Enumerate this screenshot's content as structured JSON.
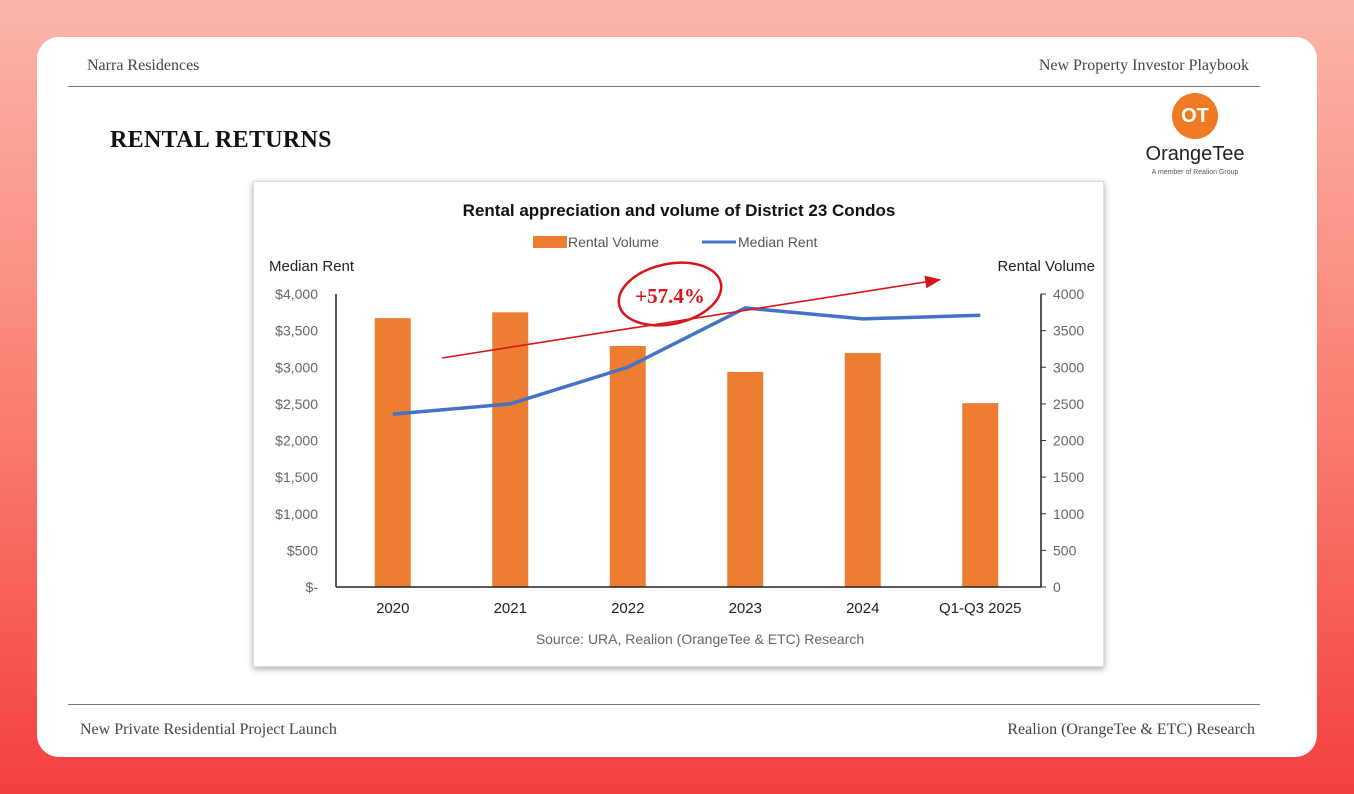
{
  "header": {
    "left": "Narra Residences",
    "right": "New Property Investor Playbook"
  },
  "section_title": "RENTAL RETURNS",
  "logo": {
    "mark": "OT",
    "name": "OrangeTee",
    "tagline": "A member of Realion Group"
  },
  "footer": {
    "left": "New Private Residential Project Launch",
    "right": "Realion (OrangeTee & ETC) Research"
  },
  "colors": {
    "bar": "#ed7d31",
    "line": "#4472c4",
    "annotation": "#d9151b"
  },
  "chart_data": {
    "type": "bar+line",
    "title": "Rental appreciation and volume of District 23 Condos",
    "categories": [
      "2020",
      "2021",
      "2022",
      "2023",
      "2024",
      "Q1-Q3 2025"
    ],
    "series": [
      {
        "name": "Rental Volume",
        "type": "bar",
        "axis": "right",
        "values": [
          3670,
          3750,
          3290,
          2935,
          3195,
          2510
        ]
      },
      {
        "name": "Median Rent",
        "type": "line",
        "axis": "left",
        "values": [
          2360,
          2500,
          3000,
          3810,
          3660,
          3710
        ]
      }
    ],
    "ylabel_left": "Median Rent",
    "ylabel_right": "Rental Volume",
    "ylim_left": [
      0,
      4000
    ],
    "ylim_right": [
      0,
      4000
    ],
    "yticks_left": [
      "$-",
      "$500",
      "$1,000",
      "$1,500",
      "$2,000",
      "$2,500",
      "$3,000",
      "$3,500",
      "$4,000"
    ],
    "yticks_right": [
      "0",
      "500",
      "1000",
      "1500",
      "2000",
      "2500",
      "3000",
      "3500",
      "4000"
    ],
    "legend": "top",
    "grid": false,
    "annotation": "+57.4%",
    "source": "Source: URA, Realion (OrangeTee & ETC) Research"
  }
}
